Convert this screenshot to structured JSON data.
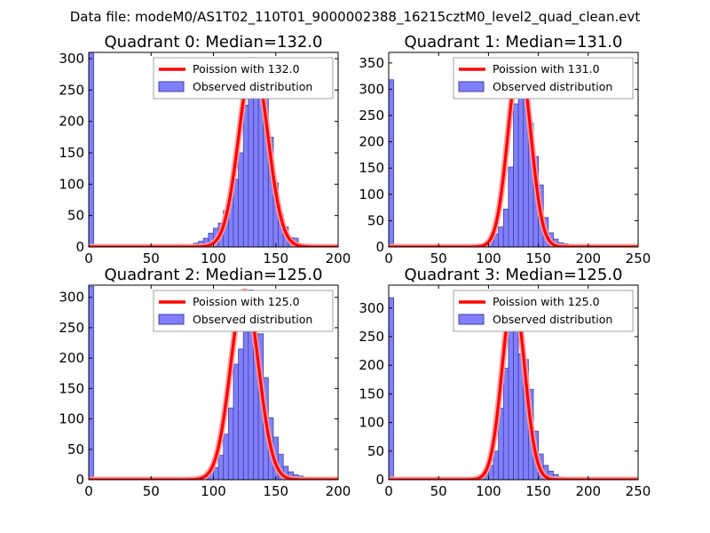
{
  "figure": {
    "suptitle": "Data file: modeM0/AS1T02_110T01_9000002388_16215cztM0_level2_quad_clean.evt"
  },
  "chart_data": [
    {
      "type": "bar",
      "title": "Quadrant 0: Median=132.0",
      "xlim": [
        0,
        200
      ],
      "ylim": [
        0,
        310
      ],
      "xticks": [
        "0",
        "50",
        "100",
        "150",
        "200"
      ],
      "yticks": [
        "0",
        "50",
        "100",
        "150",
        "200",
        "250",
        "300"
      ],
      "legend": {
        "loc": "upper right",
        "curve": "Poission with 132.0",
        "bars": "Observed distribution"
      },
      "bin_width": 4,
      "hist": [
        [
          0,
          315
        ],
        [
          72,
          2
        ],
        [
          80,
          3
        ],
        [
          84,
          6
        ],
        [
          88,
          9
        ],
        [
          92,
          14
        ],
        [
          96,
          22
        ],
        [
          100,
          30
        ],
        [
          104,
          38
        ],
        [
          108,
          58
        ],
        [
          112,
          80
        ],
        [
          116,
          108
        ],
        [
          120,
          150
        ],
        [
          124,
          226
        ],
        [
          128,
          243
        ],
        [
          132,
          260
        ],
        [
          136,
          237
        ],
        [
          140,
          236
        ],
        [
          144,
          175
        ],
        [
          148,
          102
        ],
        [
          152,
          52
        ],
        [
          156,
          32
        ],
        [
          160,
          15
        ],
        [
          164,
          14
        ],
        [
          168,
          5
        ],
        [
          172,
          4
        ],
        [
          176,
          3
        ],
        [
          184,
          1
        ]
      ],
      "curve": {
        "lambda": 132.0,
        "peak": 298,
        "sigma": 11.5
      }
    },
    {
      "type": "bar",
      "title": "Quadrant 1: Median=131.0",
      "xlim": [
        0,
        250
      ],
      "ylim": [
        0,
        370
      ],
      "xticks": [
        "0",
        "50",
        "100",
        "150",
        "200",
        "250"
      ],
      "yticks": [
        "0",
        "50",
        "100",
        "150",
        "200",
        "250",
        "300",
        "350"
      ],
      "legend": {
        "loc": "upper right",
        "curve": "Poission with 131.0",
        "bars": "Observed distribution"
      },
      "bin_width": 5,
      "hist": [
        [
          0,
          318
        ],
        [
          90,
          4
        ],
        [
          95,
          8
        ],
        [
          100,
          15
        ],
        [
          105,
          25
        ],
        [
          110,
          38
        ],
        [
          115,
          72
        ],
        [
          120,
          152
        ],
        [
          125,
          272
        ],
        [
          130,
          335
        ],
        [
          135,
          318
        ],
        [
          140,
          235
        ],
        [
          145,
          172
        ],
        [
          150,
          118
        ],
        [
          155,
          56
        ],
        [
          160,
          27
        ],
        [
          165,
          15
        ],
        [
          170,
          8
        ],
        [
          175,
          6
        ],
        [
          180,
          5
        ],
        [
          185,
          2
        ],
        [
          195,
          1
        ]
      ],
      "curve": {
        "lambda": 131.0,
        "peak": 355,
        "sigma": 11.5
      }
    },
    {
      "type": "bar",
      "title": "Quadrant 2: Median=125.0",
      "xlim": [
        0,
        200
      ],
      "ylim": [
        0,
        320
      ],
      "xticks": [
        "0",
        "50",
        "100",
        "150",
        "200"
      ],
      "yticks": [
        "0",
        "50",
        "100",
        "150",
        "200",
        "250",
        "300"
      ],
      "legend": {
        "loc": "upper right",
        "curve": "Poission with 125.0",
        "bars": "Observed distribution"
      },
      "bin_width": 4,
      "hist": [
        [
          0,
          318
        ],
        [
          80,
          2
        ],
        [
          88,
          3
        ],
        [
          92,
          5
        ],
        [
          96,
          10
        ],
        [
          100,
          20
        ],
        [
          104,
          40
        ],
        [
          108,
          75
        ],
        [
          112,
          118
        ],
        [
          116,
          190
        ],
        [
          120,
          215
        ],
        [
          124,
          300
        ],
        [
          128,
          312
        ],
        [
          132,
          240
        ],
        [
          136,
          240
        ],
        [
          140,
          168
        ],
        [
          144,
          102
        ],
        [
          148,
          70
        ],
        [
          152,
          42
        ],
        [
          156,
          22
        ],
        [
          160,
          13
        ],
        [
          164,
          8
        ],
        [
          168,
          6
        ],
        [
          172,
          4
        ],
        [
          176,
          3
        ],
        [
          184,
          2
        ]
      ],
      "curve": {
        "lambda": 125.0,
        "peak": 310,
        "sigma": 11.2
      }
    },
    {
      "type": "bar",
      "title": "Quadrant 3: Median=125.0",
      "xlim": [
        0,
        250
      ],
      "ylim": [
        0,
        340
      ],
      "xticks": [
        "0",
        "50",
        "100",
        "150",
        "200",
        "250"
      ],
      "yticks": [
        "0",
        "50",
        "100",
        "150",
        "200",
        "250",
        "300"
      ],
      "legend": {
        "loc": "upper right",
        "curve": "Poission with 125.0",
        "bars": "Observed distribution"
      },
      "bin_width": 5,
      "hist": [
        [
          0,
          318
        ],
        [
          85,
          3
        ],
        [
          90,
          5
        ],
        [
          95,
          10
        ],
        [
          100,
          25
        ],
        [
          105,
          50
        ],
        [
          110,
          125
        ],
        [
          115,
          195
        ],
        [
          120,
          285
        ],
        [
          125,
          312
        ],
        [
          130,
          220
        ],
        [
          135,
          210
        ],
        [
          140,
          158
        ],
        [
          145,
          85
        ],
        [
          150,
          45
        ],
        [
          155,
          25
        ],
        [
          160,
          15
        ],
        [
          165,
          9
        ],
        [
          170,
          5
        ],
        [
          175,
          3
        ],
        [
          180,
          1
        ]
      ],
      "curve": {
        "lambda": 125.0,
        "peak": 325,
        "sigma": 11.2
      }
    }
  ],
  "colors": {
    "bar_fill": "#8080ff",
    "bar_edge": "#40409c",
    "curve": "#ff0000",
    "curve_glow": "#ff9a9a",
    "axis": "#000000",
    "legend_edge": "#a0a0a0"
  }
}
